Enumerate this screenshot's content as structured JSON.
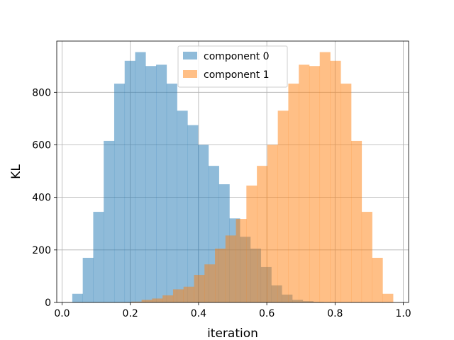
{
  "chart_data": {
    "type": "histogram",
    "title": "",
    "xlabel": "iteration",
    "ylabel": "KL",
    "xlim": [
      -0.0155,
      1.0155
    ],
    "ylim": [
      0,
      995
    ],
    "xticks": [
      0.0,
      0.2,
      0.4,
      0.6,
      0.8,
      1.0
    ],
    "xtick_labels": [
      "0.0",
      "0.2",
      "0.4",
      "0.6",
      "0.8",
      "1.0"
    ],
    "yticks": [
      0,
      200,
      400,
      600,
      800
    ],
    "ytick_labels": [
      "0",
      "200",
      "400",
      "600",
      "800"
    ],
    "grid": true,
    "legend": {
      "placement": "upper center"
    },
    "series": [
      {
        "name": "component 0",
        "color": "#1f77b4",
        "alpha": 0.5,
        "bin_edges": [
          0.03,
          0.0607,
          0.0914,
          0.1221,
          0.1528,
          0.1835,
          0.2142,
          0.2449,
          0.2756,
          0.3063,
          0.337,
          0.3677,
          0.3984,
          0.4291,
          0.4598,
          0.4905,
          0.5212,
          0.5519,
          0.5826,
          0.6133,
          0.644,
          0.6747,
          0.7054,
          0.7361,
          0.7668,
          0.7975,
          0.8282,
          0.8589,
          0.8896,
          0.9203,
          0.951
        ],
        "counts": [
          33,
          170,
          345,
          615,
          833,
          920,
          953,
          900,
          905,
          833,
          730,
          675,
          600,
          520,
          450,
          320,
          250,
          205,
          135,
          65,
          30,
          10,
          5,
          2,
          1,
          0,
          0,
          0,
          0,
          0
        ]
      },
      {
        "name": "component 1",
        "color": "#ff7f0e",
        "alpha": 0.5,
        "bin_edges": [
          0.049,
          0.0797,
          0.1104,
          0.1411,
          0.1718,
          0.2025,
          0.2332,
          0.2639,
          0.2946,
          0.3253,
          0.356,
          0.3867,
          0.4174,
          0.4481,
          0.4788,
          0.5095,
          0.5402,
          0.5709,
          0.6016,
          0.6323,
          0.663,
          0.6937,
          0.7244,
          0.7551,
          0.7858,
          0.8165,
          0.8472,
          0.8779,
          0.9086,
          0.9393,
          0.97
        ],
        "counts": [
          0,
          0,
          0,
          0,
          1,
          3,
          10,
          15,
          27,
          50,
          60,
          105,
          145,
          205,
          255,
          318,
          445,
          520,
          600,
          730,
          833,
          905,
          900,
          953,
          920,
          833,
          615,
          345,
          170,
          33
        ]
      }
    ]
  }
}
